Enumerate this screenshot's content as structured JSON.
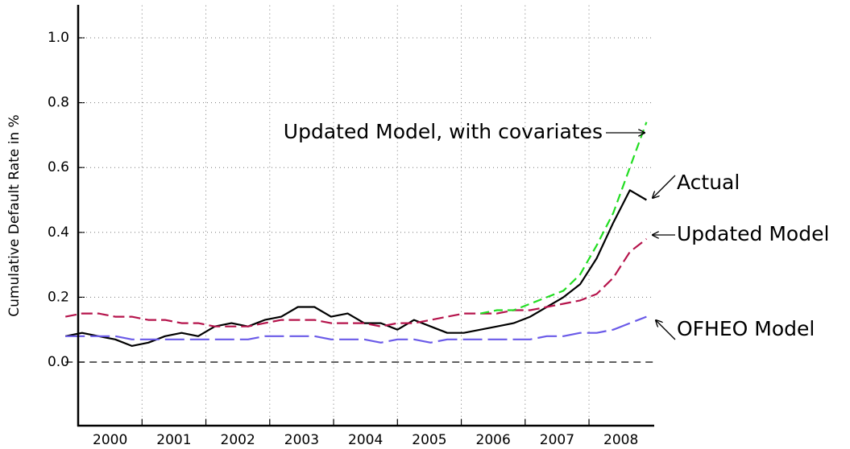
{
  "chart_data": {
    "type": "line",
    "y_label": "Cumulative Default Rate in %",
    "x": [
      1999.8,
      2000.06,
      2000.32,
      2000.58,
      2000.84,
      2001.1,
      2001.36,
      2001.62,
      2001.88,
      2002.14,
      2002.4,
      2002.66,
      2002.92,
      2003.18,
      2003.44,
      2003.7,
      2003.96,
      2004.22,
      2004.48,
      2004.74,
      2005,
      2005.26,
      2005.52,
      2005.78,
      2006.04,
      2006.3,
      2006.56,
      2006.82,
      2007.08,
      2007.34,
      2007.6,
      2007.86,
      2008.12,
      2008.38,
      2008.64,
      2008.9
    ],
    "series": [
      {
        "name": "Actual",
        "color": "#000000",
        "dash": "none",
        "values": [
          0.08,
          0.09,
          0.08,
          0.07,
          0.05,
          0.06,
          0.08,
          0.09,
          0.08,
          0.11,
          0.12,
          0.11,
          0.13,
          0.14,
          0.17,
          0.17,
          0.14,
          0.15,
          0.12,
          0.12,
          0.1,
          0.13,
          0.11,
          0.09,
          0.09,
          0.1,
          0.11,
          0.12,
          0.14,
          0.17,
          0.2,
          0.24,
          0.32,
          0.43,
          0.53,
          0.5
        ]
      },
      {
        "name": "Updated Model",
        "color": "#b5134b",
        "dash": "14,6",
        "values": [
          0.14,
          0.15,
          0.15,
          0.14,
          0.14,
          0.13,
          0.13,
          0.12,
          0.12,
          0.11,
          0.11,
          0.11,
          0.12,
          0.13,
          0.13,
          0.13,
          0.12,
          0.12,
          0.12,
          0.11,
          0.12,
          0.12,
          0.13,
          0.14,
          0.15,
          0.15,
          0.15,
          0.16,
          0.16,
          0.17,
          0.18,
          0.19,
          0.21,
          0.26,
          0.34,
          0.38
        ]
      },
      {
        "name": "OFHEO Model",
        "color": "#6a5ae8",
        "dash": "24,7",
        "values": [
          0.08,
          0.08,
          0.08,
          0.08,
          0.07,
          0.07,
          0.07,
          0.07,
          0.07,
          0.07,
          0.07,
          0.07,
          0.08,
          0.08,
          0.08,
          0.08,
          0.07,
          0.07,
          0.07,
          0.06,
          0.07,
          0.07,
          0.06,
          0.07,
          0.07,
          0.07,
          0.07,
          0.07,
          0.07,
          0.08,
          0.08,
          0.09,
          0.09,
          0.1,
          0.12,
          0.14
        ]
      },
      {
        "name": "Updated Model, with covariates",
        "color": "#22dd22",
        "dash": "11,6",
        "values": [
          null,
          null,
          null,
          null,
          null,
          null,
          null,
          null,
          null,
          null,
          null,
          null,
          null,
          null,
          null,
          null,
          null,
          null,
          null,
          null,
          null,
          null,
          null,
          null,
          null,
          0.15,
          0.16,
          0.16,
          0.18,
          0.2,
          0.22,
          0.27,
          0.36,
          0.46,
          0.6,
          0.74
        ]
      }
    ],
    "xlim": [
      1999.8,
      2009
    ],
    "xticks": [
      {
        "value": 2000.5,
        "label": "2000"
      },
      {
        "value": 2001.5,
        "label": "2001"
      },
      {
        "value": 2002.5,
        "label": "2002"
      },
      {
        "value": 2003.5,
        "label": "2003"
      },
      {
        "value": 2004.5,
        "label": "2004"
      },
      {
        "value": 2005.5,
        "label": "2005"
      },
      {
        "value": 2006.5,
        "label": "2006"
      },
      {
        "value": 2007.5,
        "label": "2007"
      },
      {
        "value": 2008.5,
        "label": "2008"
      }
    ],
    "xgrid": [
      2001,
      2002,
      2003,
      2004,
      2005,
      2006,
      2007,
      2008
    ],
    "ylim": [
      -0.2,
      1.1
    ],
    "yticks": [
      {
        "value": 0,
        "label": "0.0"
      },
      0.2,
      0.4,
      0.6,
      0.8,
      {
        "value": 1,
        "label": "1.0"
      }
    ],
    "grid": true,
    "zero_line": 0
  }
}
